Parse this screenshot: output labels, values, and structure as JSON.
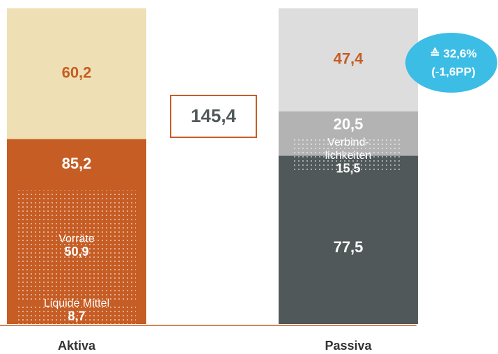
{
  "chart_data": {
    "type": "balance",
    "categories": [
      "Aktiva",
      "Passiva"
    ],
    "total": 145.4,
    "total_label": "145,4",
    "columns": [
      {
        "values": [
          85.2,
          60.2
        ],
        "value_labels": [
          "85,2",
          "60,2"
        ],
        "colors": [
          "#c65d24",
          "#efdfb5"
        ],
        "label_colors": [
          "#ffffff",
          "#c65d24"
        ],
        "overlays": [
          {
            "lines": [
              "Liquide Mittel"
            ],
            "value": 8.7,
            "value_label": "8,7"
          },
          {
            "lines": [
              "Vorräte"
            ],
            "value": 50.9,
            "value_label": "50,9"
          }
        ]
      },
      {
        "values": [
          77.5,
          20.5,
          47.4
        ],
        "value_labels": [
          "77,5",
          "20,5",
          "47,4"
        ],
        "colors": [
          "#505859",
          "#b3b3b3",
          "#dddddd"
        ],
        "label_colors": [
          "#ffffff",
          "#ffffff",
          "#c65d24"
        ],
        "overlays": [
          {
            "lines": [
              "Verbind-",
              "lichkeiten"
            ],
            "value": 15.5,
            "value_label": "15,5"
          }
        ]
      }
    ],
    "badge": {
      "lines": [
        "≙ 32,6%",
        "(-1,6PP)"
      ],
      "color": "#3bbde6"
    },
    "baseline_color": "#c65d24"
  }
}
